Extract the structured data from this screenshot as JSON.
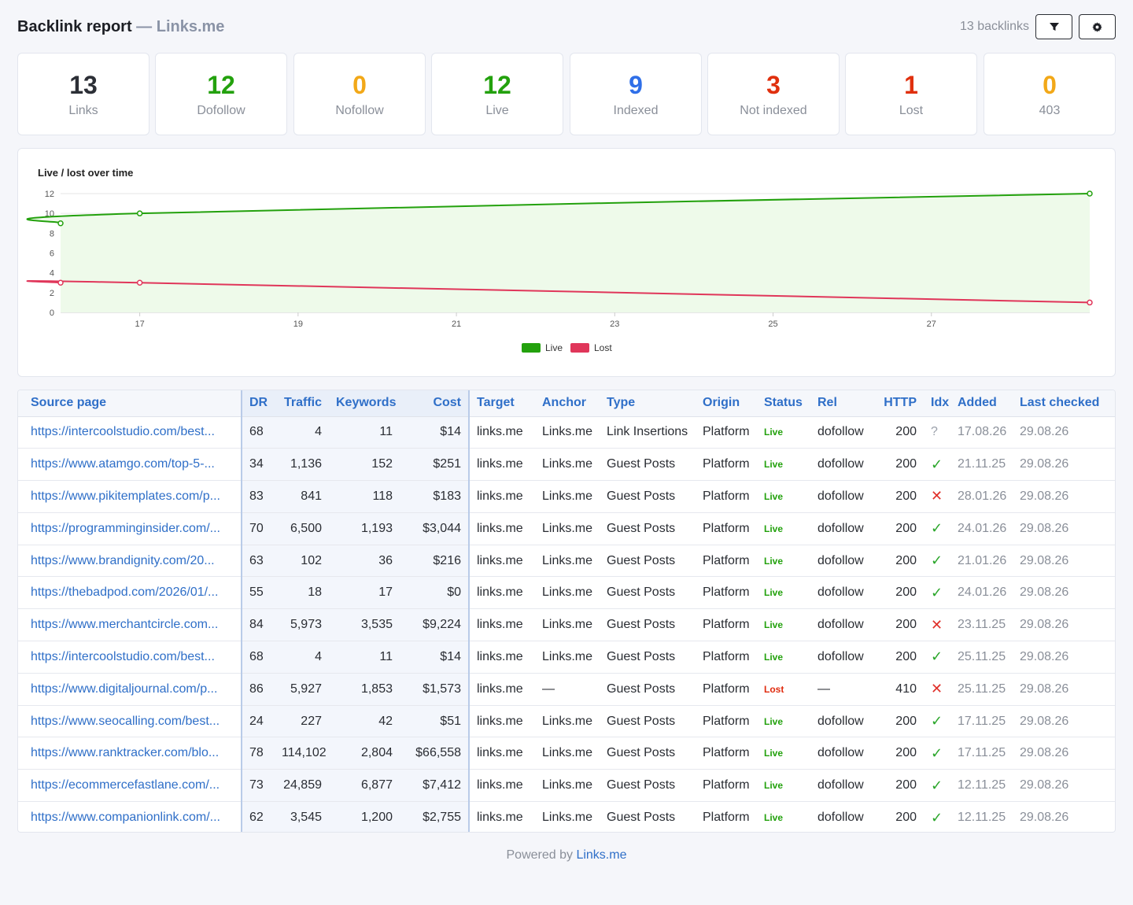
{
  "header": {
    "title": "Backlink report",
    "dash": "—",
    "brand": "Links.me",
    "count_text": "13 backlinks"
  },
  "stats": [
    {
      "value": "13",
      "label": "Links",
      "color": "#2c2f36"
    },
    {
      "value": "12",
      "label": "Dofollow",
      "color": "#23a10d"
    },
    {
      "value": "0",
      "label": "Nofollow",
      "color": "#f2a818"
    },
    {
      "value": "12",
      "label": "Live",
      "color": "#23a10d"
    },
    {
      "value": "9",
      "label": "Indexed",
      "color": "#2f6fe8"
    },
    {
      "value": "3",
      "label": "Not indexed",
      "color": "#e0300e"
    },
    {
      "value": "1",
      "label": "Lost",
      "color": "#e0300e"
    },
    {
      "value": "0",
      "label": "403",
      "color": "#f2a818"
    }
  ],
  "chart_data": {
    "type": "line",
    "title": "Live / lost over time",
    "xlabel": "",
    "ylabel": "",
    "xlim": [
      16,
      29
    ],
    "ylim": [
      0,
      12
    ],
    "x_ticks": [
      "17",
      "19",
      "21",
      "23",
      "25",
      "27"
    ],
    "y_ticks": [
      "0",
      "2",
      "4",
      "6",
      "8",
      "10",
      "12"
    ],
    "grid": true,
    "legend_position": "bottom",
    "series": [
      {
        "name": "Live",
        "color": "#23a10d",
        "fill": "#eefaea",
        "points": [
          [
            16,
            9
          ],
          [
            17,
            10
          ],
          [
            29,
            12
          ]
        ]
      },
      {
        "name": "Lost",
        "color": "#e0365a",
        "fill": "none",
        "points": [
          [
            16,
            3
          ],
          [
            17,
            3
          ],
          [
            29,
            1
          ]
        ]
      }
    ]
  },
  "table": {
    "columns": [
      "Source page",
      "DR",
      "Traffic",
      "Keywords",
      "Cost",
      "Target",
      "Anchor",
      "Type",
      "Origin",
      "Status",
      "Rel",
      "HTTP",
      "Idx",
      "Added",
      "Last checked"
    ],
    "rows": [
      {
        "source": "https://intercoolstudio.com/best...",
        "dr": "68",
        "traffic": "4",
        "keywords": "11",
        "cost": "$14",
        "target": "links.me",
        "anchor": "Links.me",
        "type": "Link Insertions",
        "origin": "Platform",
        "status": "Live",
        "rel": "dofollow",
        "http": "200",
        "idx": "?",
        "added": "17.08.26",
        "checked": "29.08.26"
      },
      {
        "source": "https://www.atamgo.com/top-5-...",
        "dr": "34",
        "traffic": "1,136",
        "keywords": "152",
        "cost": "$251",
        "target": "links.me",
        "anchor": "Links.me",
        "type": "Guest Posts",
        "origin": "Platform",
        "status": "Live",
        "rel": "dofollow",
        "http": "200",
        "idx": "✓",
        "added": "21.11.25",
        "checked": "29.08.26"
      },
      {
        "source": "https://www.pikitemplates.com/p...",
        "dr": "83",
        "traffic": "841",
        "keywords": "118",
        "cost": "$183",
        "target": "links.me",
        "anchor": "Links.me",
        "type": "Guest Posts",
        "origin": "Platform",
        "status": "Live",
        "rel": "dofollow",
        "http": "200",
        "idx": "✕",
        "added": "28.01.26",
        "checked": "29.08.26"
      },
      {
        "source": "https://programminginsider.com/...",
        "dr": "70",
        "traffic": "6,500",
        "keywords": "1,193",
        "cost": "$3,044",
        "target": "links.me",
        "anchor": "Links.me",
        "type": "Guest Posts",
        "origin": "Platform",
        "status": "Live",
        "rel": "dofollow",
        "http": "200",
        "idx": "✓",
        "added": "24.01.26",
        "checked": "29.08.26"
      },
      {
        "source": "https://www.brandignity.com/20...",
        "dr": "63",
        "traffic": "102",
        "keywords": "36",
        "cost": "$216",
        "target": "links.me",
        "anchor": "Links.me",
        "type": "Guest Posts",
        "origin": "Platform",
        "status": "Live",
        "rel": "dofollow",
        "http": "200",
        "idx": "✓",
        "added": "21.01.26",
        "checked": "29.08.26"
      },
      {
        "source": "https://thebadpod.com/2026/01/...",
        "dr": "55",
        "traffic": "18",
        "keywords": "17",
        "cost": "$0",
        "target": "links.me",
        "anchor": "Links.me",
        "type": "Guest Posts",
        "origin": "Platform",
        "status": "Live",
        "rel": "dofollow",
        "http": "200",
        "idx": "✓",
        "added": "24.01.26",
        "checked": "29.08.26"
      },
      {
        "source": "https://www.merchantcircle.com...",
        "dr": "84",
        "traffic": "5,973",
        "keywords": "3,535",
        "cost": "$9,224",
        "target": "links.me",
        "anchor": "Links.me",
        "type": "Guest Posts",
        "origin": "Platform",
        "status": "Live",
        "rel": "dofollow",
        "http": "200",
        "idx": "✕",
        "added": "23.11.25",
        "checked": "29.08.26"
      },
      {
        "source": "https://intercoolstudio.com/best...",
        "dr": "68",
        "traffic": "4",
        "keywords": "11",
        "cost": "$14",
        "target": "links.me",
        "anchor": "Links.me",
        "type": "Guest Posts",
        "origin": "Platform",
        "status": "Live",
        "rel": "dofollow",
        "http": "200",
        "idx": "✓",
        "added": "25.11.25",
        "checked": "29.08.26"
      },
      {
        "source": "https://www.digitaljournal.com/p...",
        "dr": "86",
        "traffic": "5,927",
        "keywords": "1,853",
        "cost": "$1,573",
        "target": "links.me",
        "anchor": "—",
        "type": "Guest Posts",
        "origin": "Platform",
        "status": "Lost",
        "rel": "—",
        "http": "410",
        "idx": "✕",
        "added": "25.11.25",
        "checked": "29.08.26"
      },
      {
        "source": "https://www.seocalling.com/best...",
        "dr": "24",
        "traffic": "227",
        "keywords": "42",
        "cost": "$51",
        "target": "links.me",
        "anchor": "Links.me",
        "type": "Guest Posts",
        "origin": "Platform",
        "status": "Live",
        "rel": "dofollow",
        "http": "200",
        "idx": "✓",
        "added": "17.11.25",
        "checked": "29.08.26"
      },
      {
        "source": "https://www.ranktracker.com/blo...",
        "dr": "78",
        "traffic": "114,102",
        "keywords": "2,804",
        "cost": "$66,558",
        "target": "links.me",
        "anchor": "Links.me",
        "type": "Guest Posts",
        "origin": "Platform",
        "status": "Live",
        "rel": "dofollow",
        "http": "200",
        "idx": "✓",
        "added": "17.11.25",
        "checked": "29.08.26"
      },
      {
        "source": "https://ecommercefastlane.com/...",
        "dr": "73",
        "traffic": "24,859",
        "keywords": "6,877",
        "cost": "$7,412",
        "target": "links.me",
        "anchor": "Links.me",
        "type": "Guest Posts",
        "origin": "Platform",
        "status": "Live",
        "rel": "dofollow",
        "http": "200",
        "idx": "✓",
        "added": "12.11.25",
        "checked": "29.08.26"
      },
      {
        "source": "https://www.companionlink.com/...",
        "dr": "62",
        "traffic": "3,545",
        "keywords": "1,200",
        "cost": "$2,755",
        "target": "links.me",
        "anchor": "Links.me",
        "type": "Guest Posts",
        "origin": "Platform",
        "status": "Live",
        "rel": "dofollow",
        "http": "200",
        "idx": "✓",
        "added": "12.11.25",
        "checked": "29.08.26"
      }
    ]
  },
  "footer": {
    "prefix": "Powered by",
    "link": "Links.me"
  }
}
